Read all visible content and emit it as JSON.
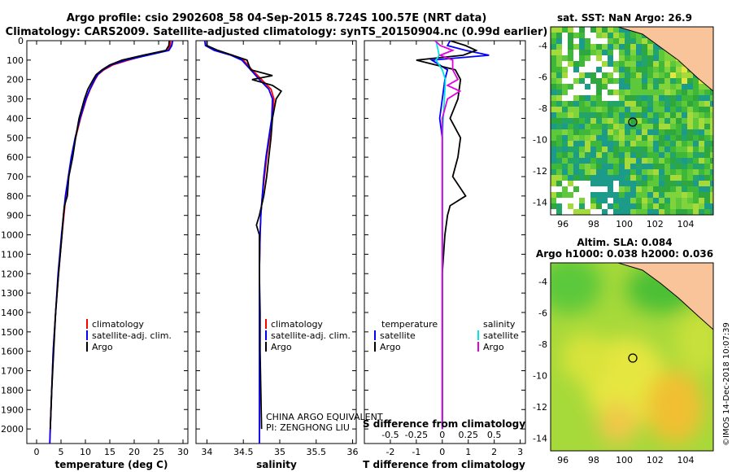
{
  "header": {
    "line1": "Argo profile: csio 2902608_58 04-Sep-2015 8.724S 100.57E (NRT data)",
    "line2": "Climatology: CARS2009. Satellite-adjusted climatology: synTS_20150904.nc (0.99d earlier)"
  },
  "colors": {
    "climatology": "#ff0000",
    "satellite": "#0000ff",
    "argo": "#000000",
    "sat_s": "#00e5e5",
    "argo_s": "#e000e0",
    "land": "#f9c49a"
  },
  "credit": {
    "equivalent": "CHINA ARGO EQUIVALENT",
    "pi": "PI: ZENGHONG LIU",
    "footer": "©IMOS 14-Dec-2018 10:07:39"
  },
  "chart_data": [
    {
      "id": "temperature",
      "type": "line",
      "xlabel": "temperature (deg C)",
      "ylabel": "",
      "xlim": [
        -2,
        31
      ],
      "ylim": [
        2075,
        0
      ],
      "xticks": [
        0,
        5,
        10,
        15,
        20,
        25,
        30
      ],
      "yticks": [
        0,
        100,
        200,
        300,
        400,
        500,
        600,
        700,
        800,
        900,
        1000,
        1100,
        1200,
        1300,
        1400,
        1500,
        1600,
        1700,
        1800,
        1900,
        2000
      ],
      "legend": [
        "climatology",
        "satellite-adj. clim.",
        "Argo"
      ],
      "series": [
        {
          "name": "climatology",
          "depth": [
            0,
            25,
            50,
            75,
            100,
            125,
            150,
            175,
            200,
            250,
            300,
            400,
            500,
            600,
            700,
            800,
            900,
            1000,
            1200,
            1400,
            1600,
            1800,
            2000,
            2075
          ],
          "values": [
            27.5,
            27.4,
            26.9,
            22.5,
            18.8,
            15.6,
            13.8,
            12.6,
            12.0,
            11.0,
            10.2,
            9.0,
            8.0,
            7.2,
            6.6,
            6.0,
            5.6,
            5.2,
            4.5,
            3.9,
            3.4,
            3.1,
            2.8,
            2.7
          ]
        },
        {
          "name": "satellite-adj. clim.",
          "depth": [
            0,
            25,
            50,
            75,
            100,
            125,
            150,
            175,
            200,
            250,
            300,
            400,
            500,
            600,
            700,
            800,
            900,
            1000,
            1200,
            1400,
            1600,
            1800,
            2000,
            2075
          ],
          "values": [
            27.9,
            27.7,
            27.1,
            22.8,
            18.3,
            15.3,
            13.6,
            12.5,
            11.9,
            10.9,
            10.1,
            8.9,
            7.9,
            7.1,
            6.5,
            5.9,
            5.5,
            5.1,
            4.4,
            3.9,
            3.4,
            3.1,
            2.8,
            2.7
          ]
        },
        {
          "name": "Argo",
          "depth": [
            0,
            25,
            50,
            75,
            100,
            125,
            150,
            175,
            200,
            250,
            300,
            400,
            500,
            600,
            700,
            800,
            850,
            900,
            1000,
            1200,
            1400,
            1600,
            1800,
            2000
          ],
          "values": [
            27.2,
            27.1,
            26.5,
            21.8,
            17.5,
            15.0,
            13.4,
            12.2,
            11.6,
            10.5,
            9.8,
            8.7,
            8.0,
            7.4,
            6.6,
            6.3,
            5.7,
            5.5,
            5.2,
            4.5,
            3.9,
            3.5,
            3.1,
            2.8
          ]
        }
      ]
    },
    {
      "id": "salinity",
      "type": "line",
      "xlabel": "salinity",
      "ylabel": "",
      "xlim": [
        33.85,
        36.05
      ],
      "ylim": [
        2075,
        0
      ],
      "xticks": [
        34,
        34.5,
        35,
        35.5,
        36
      ],
      "legend": [
        "climatology",
        "satellite-adj. clim.",
        "Argo"
      ],
      "series": [
        {
          "name": "climatology",
          "depth": [
            0,
            25,
            50,
            75,
            100,
            150,
            200,
            250,
            300,
            400,
            500,
            600,
            700,
            800,
            900,
            1000,
            1200,
            1400,
            1600,
            1800,
            2000,
            2075
          ],
          "values": [
            34.0,
            34.0,
            34.12,
            34.35,
            34.5,
            34.62,
            34.75,
            34.88,
            34.92,
            34.9,
            34.86,
            34.82,
            34.79,
            34.76,
            34.74,
            34.73,
            34.72,
            34.72,
            34.72,
            34.72,
            34.72,
            34.72
          ]
        },
        {
          "name": "satellite-adj. clim.",
          "depth": [
            0,
            25,
            50,
            75,
            100,
            150,
            200,
            250,
            300,
            400,
            500,
            600,
            700,
            800,
            900,
            1000,
            1200,
            1400,
            1600,
            1800,
            2000,
            2075
          ],
          "values": [
            33.97,
            33.98,
            34.1,
            34.33,
            34.48,
            34.6,
            34.72,
            34.85,
            34.9,
            34.89,
            34.85,
            34.81,
            34.78,
            34.76,
            34.74,
            34.73,
            34.72,
            34.72,
            34.72,
            34.72,
            34.72,
            34.72
          ]
        },
        {
          "name": "Argo",
          "depth": [
            0,
            25,
            50,
            75,
            100,
            150,
            180,
            200,
            230,
            260,
            300,
            400,
            500,
            600,
            700,
            800,
            850,
            900,
            950,
            1000,
            1200,
            1400,
            1600,
            1800,
            2000
          ],
          "values": [
            34.0,
            34.0,
            34.15,
            34.35,
            34.55,
            34.6,
            34.9,
            34.62,
            34.9,
            35.02,
            34.95,
            34.9,
            34.88,
            34.85,
            34.82,
            34.78,
            34.75,
            34.72,
            34.68,
            34.72,
            34.72,
            34.73,
            34.73,
            34.74,
            34.75
          ]
        }
      ]
    },
    {
      "id": "differences",
      "type": "line",
      "xlabel": "T difference from climatology",
      "xlabel2": "S difference from climatology",
      "xlim": [
        -3,
        3.2
      ],
      "ylim": [
        2075,
        0
      ],
      "xticks": [
        -2,
        -1,
        0,
        1,
        2,
        3
      ],
      "xticks2_labels": [
        "-0.5",
        "-0.25",
        "0",
        "0.25",
        "0.5"
      ],
      "xticks2_values": [
        -0.5,
        -0.25,
        0,
        0.25,
        0.5
      ],
      "s_scale": 4,
      "legend_temperature_title": "temperature",
      "legend_salinity_title": "salinity",
      "legend_temperature": [
        "satellite",
        "Argo"
      ],
      "legend_salinity": [
        "satellite",
        "Argo"
      ],
      "series": [
        {
          "name": "T satellite",
          "depth": [
            0,
            25,
            50,
            75,
            100,
            150,
            200,
            300,
            400,
            500,
            600,
            700,
            800,
            900,
            1000,
            1200,
            1400,
            1600,
            1800,
            2000
          ],
          "values": [
            0.3,
            0.2,
            0.9,
            1.8,
            -0.4,
            0.2,
            0.1,
            0.0,
            -0.1,
            0.0,
            0.0,
            0.0,
            0.0,
            0.0,
            0.0,
            0.0,
            0.0,
            0.0,
            0.0,
            0.0
          ]
        },
        {
          "name": "T Argo",
          "depth": [
            0,
            25,
            50,
            75,
            100,
            150,
            200,
            300,
            400,
            500,
            600,
            700,
            800,
            850,
            900,
            1000,
            1200,
            1400,
            1600,
            1800,
            2000
          ],
          "values": [
            0.3,
            0.9,
            1.3,
            0.8,
            -1.0,
            0.5,
            0.7,
            0.6,
            0.3,
            0.7,
            0.6,
            0.4,
            0.9,
            0.3,
            0.2,
            0.1,
            0.0,
            0.0,
            0.0,
            0.0,
            0.0
          ]
        },
        {
          "name": "S satellite",
          "depth": [
            0,
            25,
            50,
            75,
            100,
            150,
            200,
            300,
            400,
            500,
            600,
            700,
            800,
            900,
            1000,
            1200,
            1400,
            1600,
            1800,
            2000
          ],
          "values": [
            -0.06,
            -0.05,
            -0.04,
            -0.03,
            -0.06,
            0.0,
            0.03,
            0.02,
            0.01,
            0.0,
            0.0,
            0.0,
            0.0,
            0.0,
            0.0,
            0.0,
            0.0,
            0.0,
            0.0,
            0.0
          ]
        },
        {
          "name": "S Argo",
          "depth": [
            0,
            25,
            50,
            75,
            100,
            150,
            200,
            230,
            260,
            300,
            400,
            500,
            600,
            800,
            900,
            1000,
            1200,
            1400,
            1600,
            1800,
            2000
          ],
          "values": [
            -0.07,
            -0.02,
            0.1,
            -0.02,
            0.1,
            0.1,
            0.15,
            0.05,
            0.17,
            0.05,
            0.0,
            0.0,
            0.0,
            0.0,
            0.0,
            0.0,
            0.0,
            0.0,
            0.0,
            0.0,
            0.0
          ]
        }
      ]
    },
    {
      "id": "sst_map",
      "type": "heatmap",
      "title": "sat. SST: NaN Argo: 26.9",
      "xlim": [
        95.2,
        105.8
      ],
      "ylim": [
        -14.8,
        -2.8
      ],
      "xticks": [
        96,
        98,
        100,
        102,
        104
      ],
      "yticks": [
        -4,
        -6,
        -8,
        -10,
        -12,
        -14
      ],
      "marker": [
        100.57,
        -8.724
      ]
    },
    {
      "id": "sla_map",
      "type": "heatmap",
      "title": "Altim. SLA: 0.084",
      "subtitle": "Argo h1000: 0.038 h2000: 0.036",
      "xlim": [
        95.2,
        105.8
      ],
      "ylim": [
        -14.8,
        -2.8
      ],
      "xticks": [
        96,
        98,
        100,
        102,
        104
      ],
      "yticks": [
        -4,
        -6,
        -8,
        -10,
        -12,
        -14
      ],
      "marker": [
        100.57,
        -8.724
      ]
    }
  ]
}
